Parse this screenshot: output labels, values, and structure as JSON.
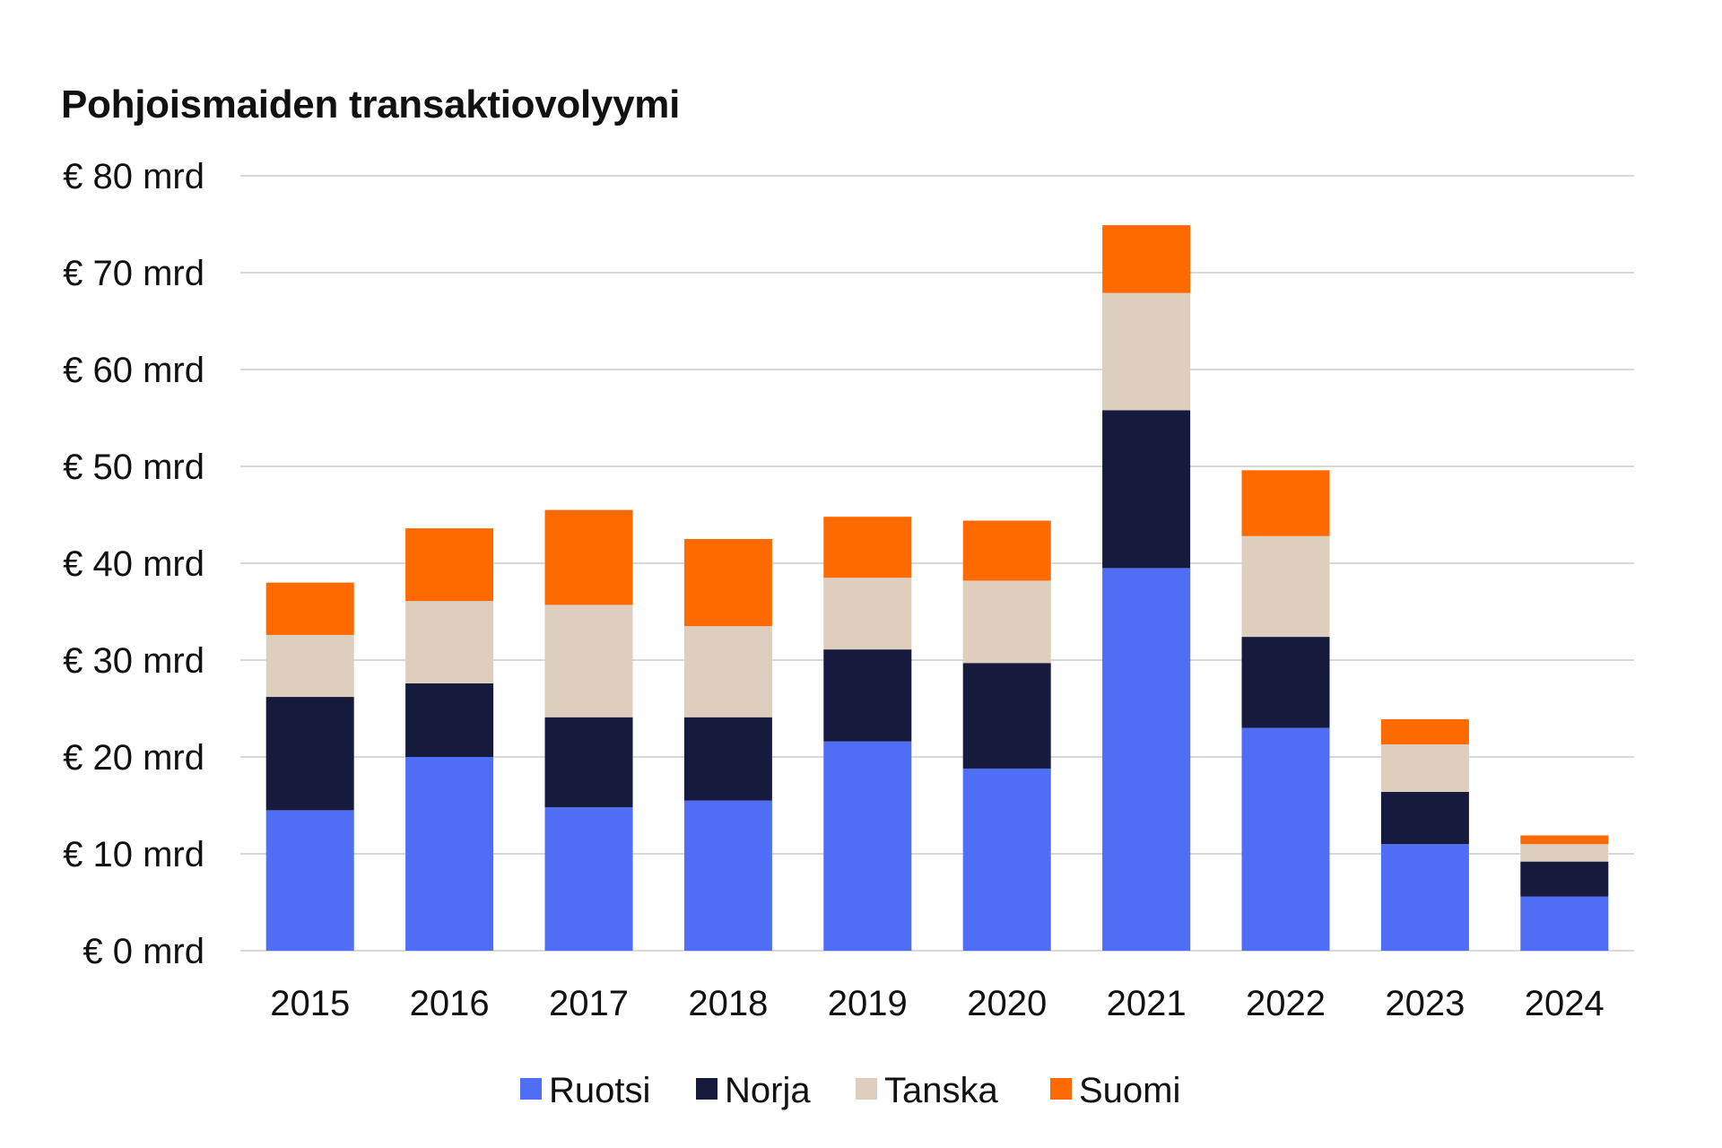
{
  "chart_data": {
    "type": "bar",
    "stacked": true,
    "title": "Pohjoismaiden transaktiovolyymi",
    "xlabel": "",
    "ylabel": "",
    "ylim": [
      0,
      80
    ],
    "y_ticks": [
      0,
      10,
      20,
      30,
      40,
      50,
      60,
      70,
      80
    ],
    "y_tick_labels": [
      "€ 0 mrd",
      "€ 10 mrd",
      "€ 20 mrd",
      "€ 30 mrd",
      "€ 40 mrd",
      "€ 50 mrd",
      "€ 60 mrd",
      "€ 70 mrd",
      "€ 80 mrd"
    ],
    "grid": true,
    "legend_position": "bottom",
    "categories": [
      "2015",
      "2016",
      "2017",
      "2018",
      "2019",
      "2020",
      "2021",
      "2022",
      "2023",
      "2024"
    ],
    "series": [
      {
        "name": "Ruotsi",
        "color": "#4F6DF5",
        "values": [
          14.5,
          20.0,
          14.8,
          15.5,
          21.6,
          18.8,
          39.5,
          23.0,
          11.0,
          5.6
        ]
      },
      {
        "name": "Norja",
        "color": "#161B3D",
        "values": [
          11.7,
          7.6,
          9.3,
          8.6,
          9.5,
          10.9,
          16.3,
          9.4,
          5.4,
          3.6
        ]
      },
      {
        "name": "Tanska",
        "color": "#DDCEBE",
        "values": [
          6.4,
          8.5,
          11.6,
          9.4,
          7.4,
          8.5,
          12.1,
          10.4,
          4.9,
          1.8
        ]
      },
      {
        "name": "Suomi",
        "color": "#FF6A00",
        "values": [
          5.4,
          7.5,
          9.8,
          9.0,
          6.3,
          6.2,
          7.0,
          6.8,
          2.6,
          0.9
        ]
      }
    ]
  }
}
